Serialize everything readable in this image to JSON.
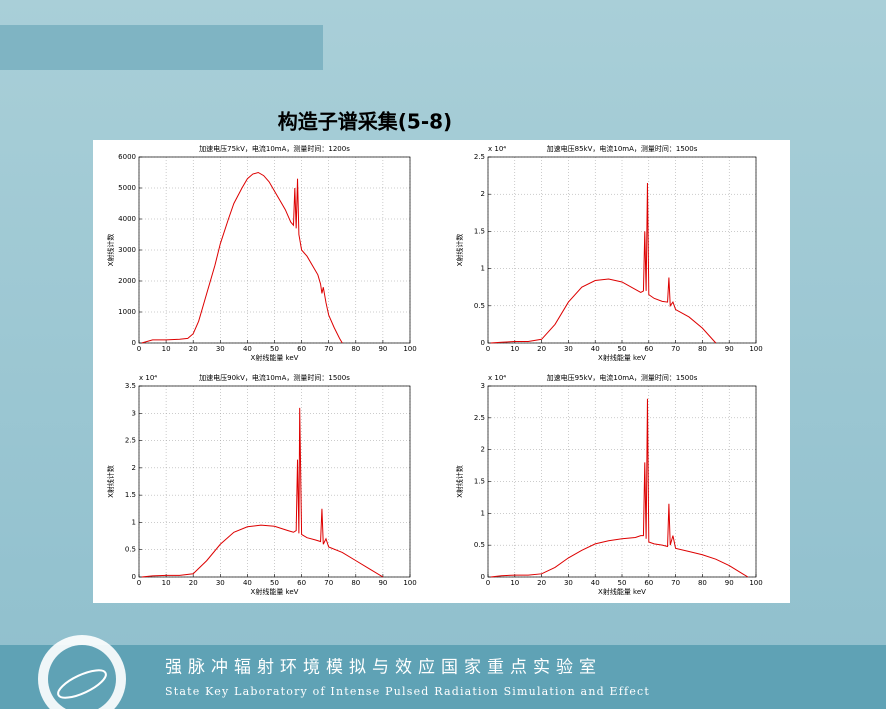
{
  "slide": {
    "title": "构造子谱采集(5-8)",
    "footer_cn": "强脉冲辐射环境模拟与效应国家重点实验室",
    "footer_en": "State Key Laboratory of Intense Pulsed Radiation Simulation and Effect"
  },
  "chart_data": [
    {
      "type": "line",
      "title": "加速电压75kV，电流10mA，测量时间：1200s",
      "x_label": "X射线能量 keV",
      "y_label": "X射线计数",
      "grid": true,
      "xlim": [
        0,
        100
      ],
      "xticks": [
        0,
        10,
        20,
        30,
        40,
        50,
        60,
        70,
        80,
        90,
        100
      ],
      "ylim": [
        0,
        6000
      ],
      "yticks": [
        0,
        1000,
        2000,
        3000,
        4000,
        5000,
        6000
      ],
      "x": [
        1,
        5,
        10,
        15,
        18,
        20,
        22,
        25,
        28,
        30,
        33,
        35,
        38,
        40,
        42,
        44,
        46,
        48,
        50,
        52,
        54,
        55,
        56,
        57,
        57.5,
        58,
        58.5,
        59,
        60,
        62,
        64,
        66,
        67,
        67.5,
        68,
        69,
        70,
        72,
        74,
        75
      ],
      "series": [
        {
          "color": "#dd0000",
          "values": [
            0,
            100,
            100,
            120,
            150,
            300,
            700,
            1600,
            2500,
            3200,
            4000,
            4500,
            5000,
            5300,
            5450,
            5500,
            5400,
            5200,
            4900,
            4600,
            4300,
            4100,
            3900,
            3800,
            5000,
            3700,
            5300,
            3500,
            3000,
            2800,
            2500,
            2200,
            1900,
            1600,
            1800,
            1300,
            900,
            500,
            150,
            0
          ]
        }
      ]
    },
    {
      "type": "line",
      "title": "加速电压85kV，电流10mA，测量时间：1500s",
      "x_label": "X射线能量 keV",
      "y_label": "X射线计数",
      "y_multiplier": "x 10⁴",
      "grid": true,
      "xlim": [
        0,
        100
      ],
      "xticks": [
        0,
        10,
        20,
        30,
        40,
        50,
        60,
        70,
        80,
        90,
        100
      ],
      "ylim": [
        0,
        2.5
      ],
      "yticks": [
        0,
        0.5,
        1,
        1.5,
        2,
        2.5
      ],
      "x": [
        1,
        5,
        10,
        15,
        20,
        25,
        30,
        35,
        40,
        45,
        50,
        55,
        57,
        58,
        58.5,
        59,
        59.5,
        60,
        62,
        65,
        67,
        67.5,
        68,
        69,
        70,
        75,
        80,
        85
      ],
      "series": [
        {
          "color": "#dd0000",
          "values": [
            0,
            0.01,
            0.02,
            0.02,
            0.05,
            0.25,
            0.55,
            0.75,
            0.84,
            0.86,
            0.82,
            0.72,
            0.68,
            0.7,
            1.5,
            0.7,
            2.15,
            0.65,
            0.6,
            0.56,
            0.55,
            0.88,
            0.5,
            0.55,
            0.45,
            0.35,
            0.2,
            0
          ]
        }
      ]
    },
    {
      "type": "line",
      "title": "加速电压90kV，电流10mA，测量时间：1500s",
      "x_label": "X射线能量 keV",
      "y_label": "X射线计数",
      "y_multiplier": "x 10⁴",
      "grid": true,
      "xlim": [
        0,
        100
      ],
      "xticks": [
        0,
        10,
        20,
        30,
        40,
        50,
        60,
        70,
        80,
        90,
        100
      ],
      "ylim": [
        0,
        3.5
      ],
      "yticks": [
        0,
        0.5,
        1,
        1.5,
        2,
        2.5,
        3,
        3.5
      ],
      "x": [
        1,
        5,
        10,
        15,
        20,
        25,
        30,
        35,
        40,
        45,
        50,
        55,
        57,
        58,
        58.5,
        59,
        59.3,
        60,
        62,
        65,
        67,
        67.5,
        68,
        69,
        70,
        75,
        80,
        85,
        90
      ],
      "series": [
        {
          "color": "#dd0000",
          "values": [
            0,
            0.02,
            0.03,
            0.03,
            0.06,
            0.3,
            0.6,
            0.82,
            0.92,
            0.95,
            0.93,
            0.85,
            0.82,
            0.85,
            2.15,
            0.8,
            3.1,
            0.78,
            0.72,
            0.68,
            0.65,
            1.25,
            0.6,
            0.7,
            0.55,
            0.45,
            0.3,
            0.15,
            0
          ]
        }
      ]
    },
    {
      "type": "line",
      "title": "加速电压95kV，电流10mA，测量时间：1500s",
      "x_label": "X射线能量 keV",
      "y_label": "X射线计数",
      "y_multiplier": "x 10⁴",
      "grid": true,
      "xlim": [
        0,
        100
      ],
      "xticks": [
        0,
        10,
        20,
        30,
        40,
        50,
        60,
        70,
        80,
        90,
        100
      ],
      "ylim": [
        0,
        3
      ],
      "yticks": [
        0,
        0.5,
        1,
        1.5,
        2,
        2.5,
        3
      ],
      "x": [
        1,
        5,
        10,
        15,
        20,
        25,
        30,
        35,
        40,
        45,
        50,
        55,
        57,
        58,
        58.5,
        59,
        59.5,
        60,
        62,
        65,
        67,
        67.5,
        68,
        69,
        70,
        75,
        80,
        85,
        90,
        95,
        97
      ],
      "series": [
        {
          "color": "#dd0000",
          "values": [
            0,
            0.02,
            0.03,
            0.03,
            0.05,
            0.15,
            0.3,
            0.42,
            0.52,
            0.57,
            0.6,
            0.62,
            0.65,
            0.65,
            1.8,
            0.6,
            2.8,
            0.55,
            0.52,
            0.5,
            0.48,
            1.15,
            0.5,
            0.65,
            0.45,
            0.4,
            0.35,
            0.28,
            0.18,
            0.05,
            0
          ]
        }
      ]
    }
  ]
}
